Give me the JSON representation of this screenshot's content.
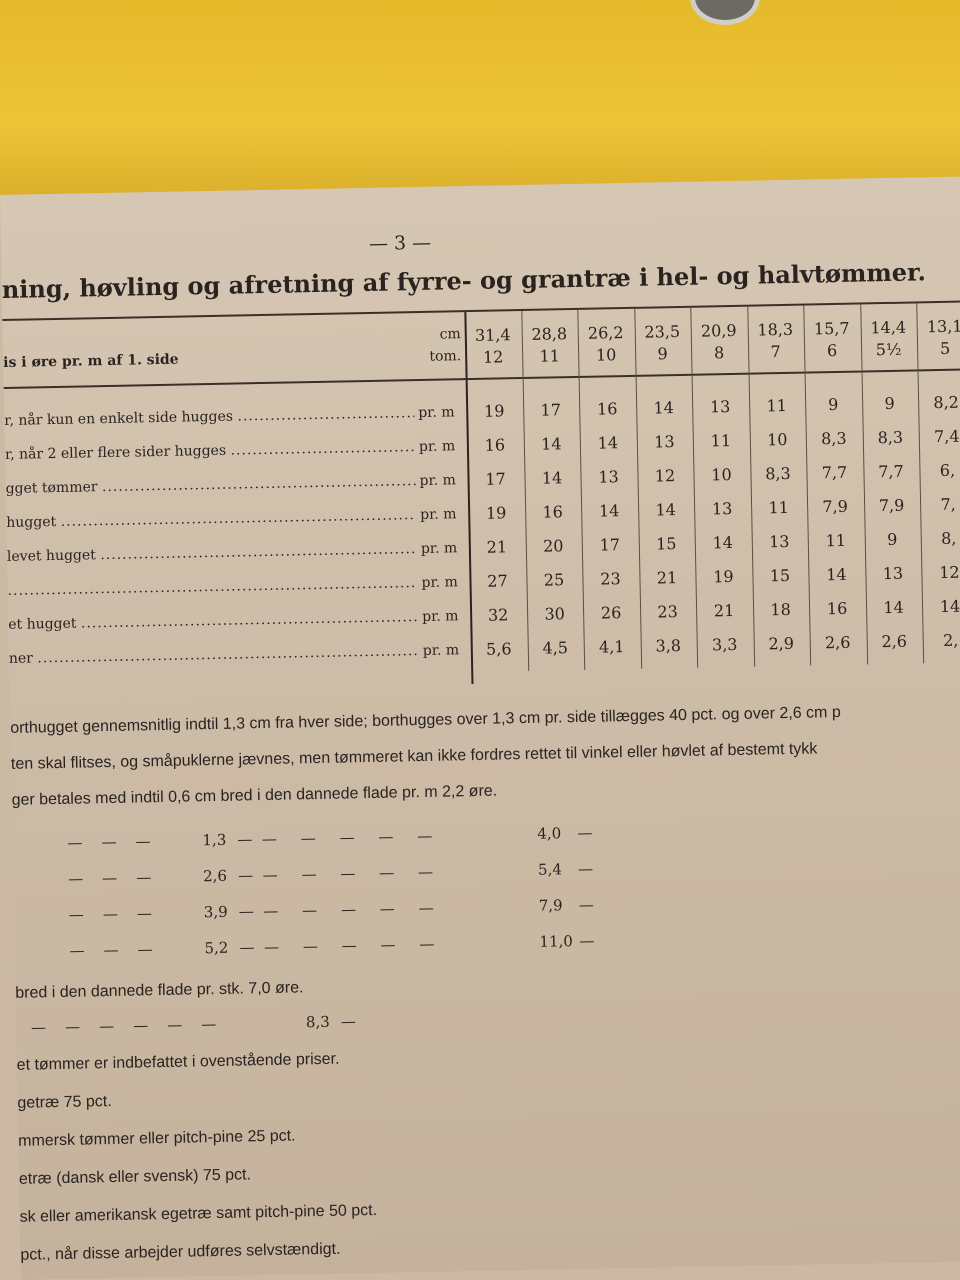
{
  "page_number": "— 3 —",
  "title": "ning, høvling og afretning af fyrre- og grantræ i hel- og halvtømmer.",
  "table": {
    "header_label": "is i øre pr. m af 1. side",
    "unit_cm": "cm",
    "unit_tom": "tom.",
    "columns": [
      {
        "cm": "31,4",
        "tom": "12"
      },
      {
        "cm": "28,8",
        "tom": "11"
      },
      {
        "cm": "26,2",
        "tom": "10"
      },
      {
        "cm": "23,5",
        "tom": "9"
      },
      {
        "cm": "20,9",
        "tom": "8"
      },
      {
        "cm": "18,3",
        "tom": "7"
      },
      {
        "cm": "15,7",
        "tom": "6"
      },
      {
        "cm": "14,4",
        "tom": "5½"
      },
      {
        "cm": "13,1",
        "tom": "5"
      }
    ],
    "rows": [
      {
        "label": "r, når kun en enkelt side hugges",
        "unit": "pr. m",
        "values": [
          "19",
          "17",
          "16",
          "14",
          "13",
          "11",
          "9",
          "9",
          "8,2"
        ]
      },
      {
        "label": "r, når 2 eller flere sider hugges",
        "unit": "pr. m",
        "values": [
          "16",
          "14",
          "14",
          "13",
          "11",
          "10",
          "8,3",
          "8,3",
          "7,4"
        ]
      },
      {
        "label": "gget tømmer",
        "unit": "pr. m",
        "values": [
          "17",
          "14",
          "13",
          "12",
          "10",
          "8,3",
          "7,7",
          "7,7",
          "6,"
        ]
      },
      {
        "label": " hugget",
        "unit": "pr. m",
        "values": [
          "19",
          "16",
          "14",
          "14",
          "13",
          "11",
          "7,9",
          "7,9",
          "7,"
        ]
      },
      {
        "label": "levet hugget",
        "unit": "pr. m",
        "values": [
          "21",
          "20",
          "17",
          "15",
          "14",
          "13",
          "11",
          "9",
          "8,"
        ]
      },
      {
        "label": "",
        "unit": "pr. m",
        "values": [
          "27",
          "25",
          "23",
          "21",
          "19",
          "15",
          "14",
          "13",
          "12"
        ]
      },
      {
        "label": "et hugget",
        "unit": "pr. m",
        "values": [
          "32",
          "30",
          "26",
          "23",
          "21",
          "18",
          "16",
          "14",
          "14"
        ]
      },
      {
        "label": "ner",
        "unit": "pr. m",
        "values": [
          "5,6",
          "4,5",
          "4,1",
          "3,8",
          "3,3",
          "2,9",
          "2,6",
          "2,6",
          "2,"
        ]
      }
    ]
  },
  "notes": [
    "orthugget gennemsnitlig indtil 1,3 cm fra hver side; borthugges over 1,3 cm pr. side tillægges 40 pct. og over 2,6 cm p",
    "ten skal flitses, og småpuklerne jævnes, men tømmeret kan ikke fordres rettet til vinkel eller høvlet af bestemt tykk",
    "ger betales med indtil 0,6 cm bred i den dannede flade pr. m 2,2 øre."
  ],
  "ditto_rows": [
    {
      "width": "1,3",
      "price": "4,0"
    },
    {
      "width": "2,6",
      "price": "5,4"
    },
    {
      "width": "3,9",
      "price": "7,9"
    },
    {
      "width": "5,2",
      "price": "11,0"
    }
  ],
  "stk_line": "bred i den dannede flade pr. stk. 7,0 øre.",
  "stk_ditto_price": "8,3",
  "trailing_lines": [
    "et tømmer er indbefattet i ovenstående priser.",
    "getræ 75 pct.",
    "mmersk tømmer eller pitch-pine 25 pct.",
    "etræ (dansk eller svensk) 75 pct.",
    "sk eller amerikansk egetræ samt pitch-pine 50 pct.",
    "pct., når disse arbejder udføres selvstændigt."
  ]
}
